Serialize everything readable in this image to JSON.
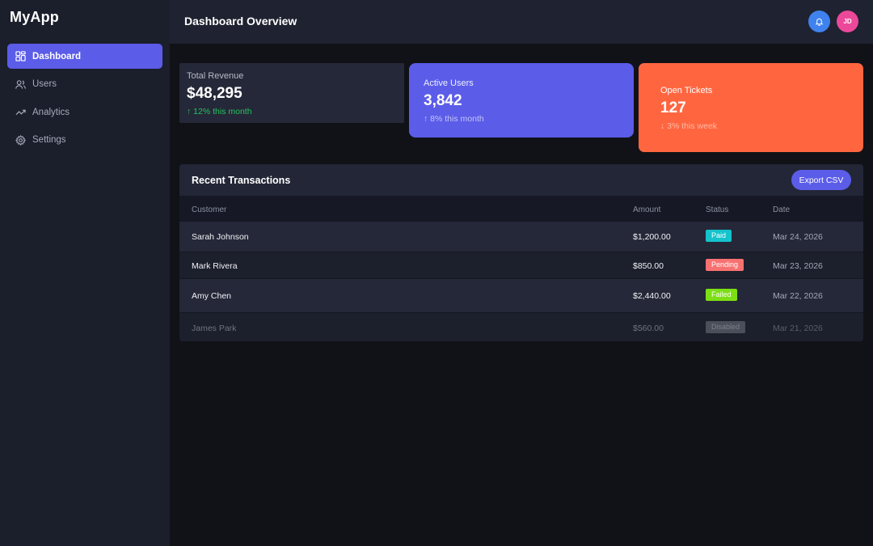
{
  "app": {
    "name": "MyApp"
  },
  "sidebar": {
    "items": [
      {
        "label": "Dashboard",
        "icon": "dashboard-grid-icon",
        "active": true
      },
      {
        "label": "Users",
        "icon": "users-icon",
        "active": false
      },
      {
        "label": "Analytics",
        "icon": "trending-up-icon",
        "active": false
      },
      {
        "label": "Settings",
        "icon": "gear-icon",
        "active": false
      }
    ]
  },
  "header": {
    "title": "Dashboard Overview",
    "notification_icon": "bell-icon",
    "avatar_initials": "JD"
  },
  "stats": {
    "revenue": {
      "label": "Total Revenue",
      "value": "$48,295",
      "delta": "↑ 12% this month",
      "delta_color": "#22c55e"
    },
    "users": {
      "label": "Active Users",
      "value": "3,842",
      "delta": "↑ 8% this month",
      "color": "#5b5ce8"
    },
    "tickets": {
      "label": "Open Tickets",
      "value": "127",
      "delta": "↓ 3% this week",
      "color": "#ff6640"
    }
  },
  "transactions": {
    "title": "Recent Transactions",
    "export_label": "Export CSV",
    "columns": [
      "Customer",
      "Amount",
      "Status",
      "Date"
    ],
    "rows": [
      {
        "customer": "Sarah Johnson",
        "amount": "$1,200.00",
        "status": "Paid",
        "status_color": "#14c3cc",
        "date": "Mar 24, 2026"
      },
      {
        "customer": "Mark Rivera",
        "amount": "$850.00",
        "status": "Pending",
        "status_color": "#f87171",
        "date": "Mar 23, 2026"
      },
      {
        "customer": "Amy Chen",
        "amount": "$2,440.00",
        "status": "Failed",
        "status_color": "#7cdf14",
        "date": "Mar 22, 2026"
      },
      {
        "customer": "James Park",
        "amount": "$560.00",
        "status": "Disabled",
        "status_color": "#4b4f5a",
        "date": "Mar 21, 2026"
      }
    ]
  }
}
